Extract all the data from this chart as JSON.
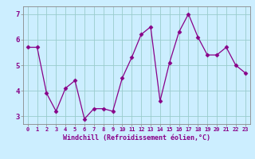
{
  "x": [
    0,
    1,
    2,
    3,
    4,
    5,
    6,
    7,
    8,
    9,
    10,
    11,
    12,
    13,
    14,
    15,
    16,
    17,
    18,
    19,
    20,
    21,
    22,
    23
  ],
  "y": [
    5.7,
    5.7,
    3.9,
    3.2,
    4.1,
    4.4,
    2.9,
    3.3,
    3.3,
    3.2,
    4.5,
    5.3,
    6.2,
    6.5,
    3.6,
    5.1,
    6.3,
    7.0,
    6.1,
    5.4,
    5.4,
    5.7,
    5.0,
    4.7
  ],
  "line_color": "#880088",
  "marker": "D",
  "marker_size": 2.5,
  "background_color": "#cceeff",
  "grid_color": "#99cccc",
  "xlabel": "Windchill (Refroidissement éolien,°C)",
  "xlabel_color": "#880088",
  "tick_color": "#880088",
  "spine_color": "#888888",
  "ylim": [
    2.7,
    7.3
  ],
  "yticks": [
    3,
    4,
    5,
    6,
    7
  ],
  "xlim": [
    -0.5,
    23.5
  ]
}
